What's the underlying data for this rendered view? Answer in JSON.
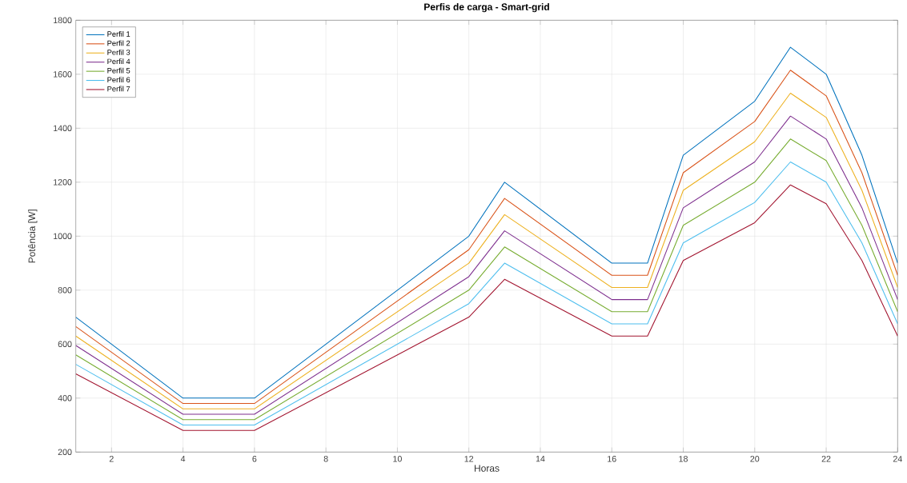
{
  "chart_data": {
    "type": "line",
    "title": "Perfis de carga - Smart-grid",
    "xlabel": "Horas",
    "ylabel": "Potência [W]",
    "x": [
      1,
      4,
      6,
      12,
      13,
      16,
      17,
      18,
      20,
      21,
      22,
      23,
      24
    ],
    "series": [
      {
        "name": "Perfil 1",
        "color": "#0072bd",
        "values": [
          700,
          400,
          400,
          1000,
          1200,
          900,
          900,
          1300,
          1500,
          1700,
          1600,
          1300,
          900
        ]
      },
      {
        "name": "Perfil 2",
        "color": "#d95319",
        "values": [
          665,
          380,
          380,
          950,
          1140,
          855,
          855,
          1235,
          1425,
          1615,
          1520,
          1235,
          855
        ]
      },
      {
        "name": "Perfil 3",
        "color": "#edb120",
        "values": [
          630,
          360,
          360,
          900,
          1080,
          810,
          810,
          1170,
          1350,
          1530,
          1440,
          1170,
          810
        ]
      },
      {
        "name": "Perfil 4",
        "color": "#7e2f8e",
        "values": [
          595,
          340,
          340,
          850,
          1020,
          765,
          765,
          1105,
          1275,
          1445,
          1360,
          1105,
          765
        ]
      },
      {
        "name": "Perfil 5",
        "color": "#77ac30",
        "values": [
          560,
          320,
          320,
          800,
          960,
          720,
          720,
          1040,
          1200,
          1360,
          1280,
          1040,
          720
        ]
      },
      {
        "name": "Perfil 6",
        "color": "#4dbeee",
        "values": [
          525,
          300,
          300,
          750,
          900,
          675,
          675,
          975,
          1125,
          1275,
          1200,
          975,
          675
        ]
      },
      {
        "name": "Perfil 7",
        "color": "#a2142f",
        "values": [
          490,
          280,
          280,
          700,
          840,
          630,
          630,
          910,
          1050,
          1190,
          1120,
          910,
          630
        ]
      }
    ],
    "xlim": [
      1,
      24
    ],
    "ylim": [
      200,
      1800
    ],
    "xticks": [
      2,
      4,
      6,
      8,
      10,
      12,
      14,
      16,
      18,
      20,
      22,
      24
    ],
    "yticks": [
      200,
      400,
      600,
      800,
      1000,
      1200,
      1400,
      1600,
      1800
    ],
    "grid": true,
    "legend": "top left",
    "marker": "none",
    "line_style": "solid"
  }
}
